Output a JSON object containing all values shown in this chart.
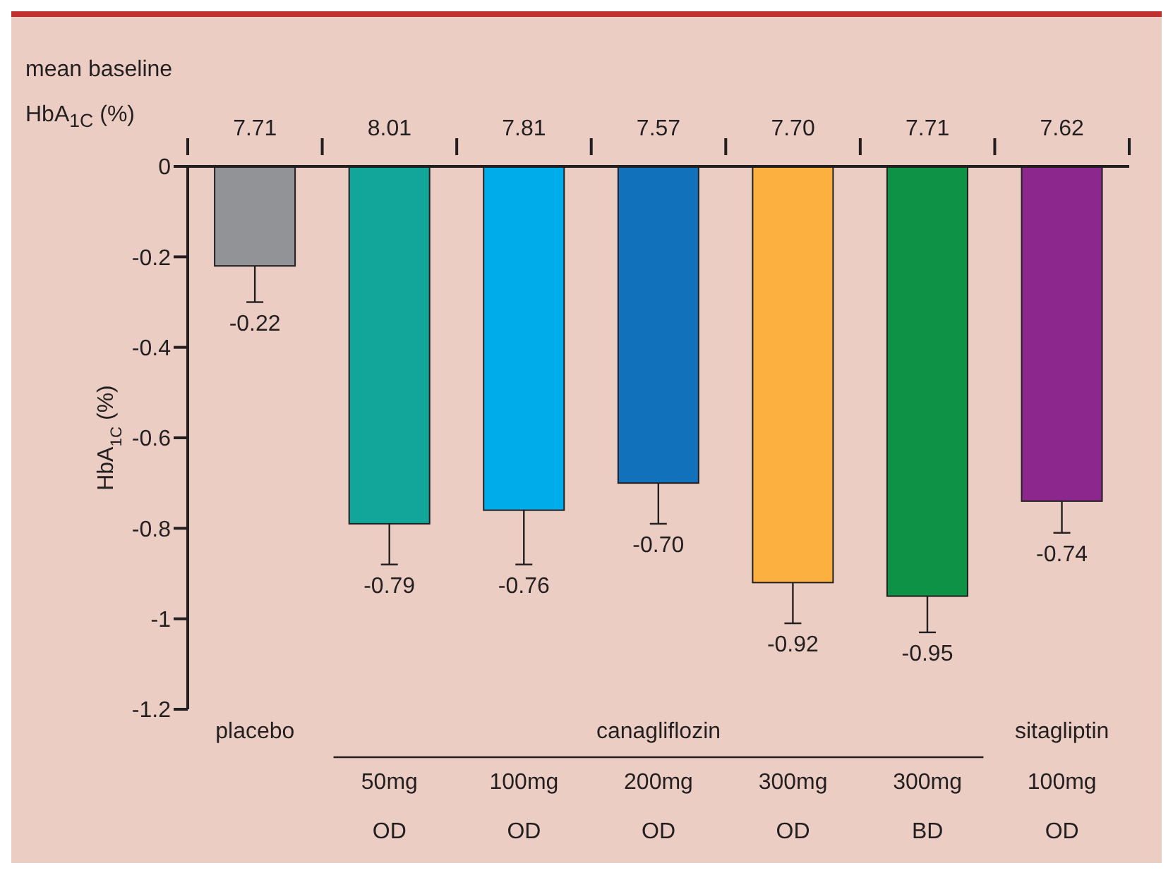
{
  "chart_data": {
    "type": "bar",
    "ylabel": "HbA$_{1C}$ (%)",
    "categories": [
      "placebo",
      "50mg OD",
      "100mg OD",
      "200mg OD",
      "300mg OD",
      "300mg BD",
      "100mg OD"
    ],
    "values": [
      -0.22,
      -0.79,
      -0.76,
      -0.7,
      -0.92,
      -0.95,
      -0.74
    ],
    "colors": [
      "#929396",
      "#12a69b",
      "#00adeb",
      "#1172bb",
      "#fbb040",
      "#0e9246",
      "#8c288d"
    ],
    "errors": [
      [
        -0.3,
        -0.22
      ],
      [
        -0.88,
        -0.79
      ],
      [
        -0.88,
        -0.76
      ],
      [
        -0.79,
        -0.7
      ],
      [
        -1.01,
        -0.92
      ],
      [
        -1.03,
        -0.95
      ],
      [
        -0.81,
        -0.74
      ]
    ],
    "value_labels": [
      "-0.22",
      "-0.79",
      "-0.76",
      "-0.70",
      "-0.92",
      "-0.95",
      "-0.74"
    ],
    "ylim": [
      -1.2,
      0
    ],
    "yticks": [
      -1.2,
      -1,
      -0.8,
      -0.6,
      -0.4,
      -0.2,
      0
    ],
    "grid": false,
    "legend": false,
    "annotations": [
      "mean baseline",
      "HbA$_{1C}$ (%)",
      "7.71",
      "8.01",
      "7.81",
      "7.57",
      "7.70",
      "7.71",
      "7.62",
      "canagliflozin",
      "sitagliptin"
    ]
  }
}
